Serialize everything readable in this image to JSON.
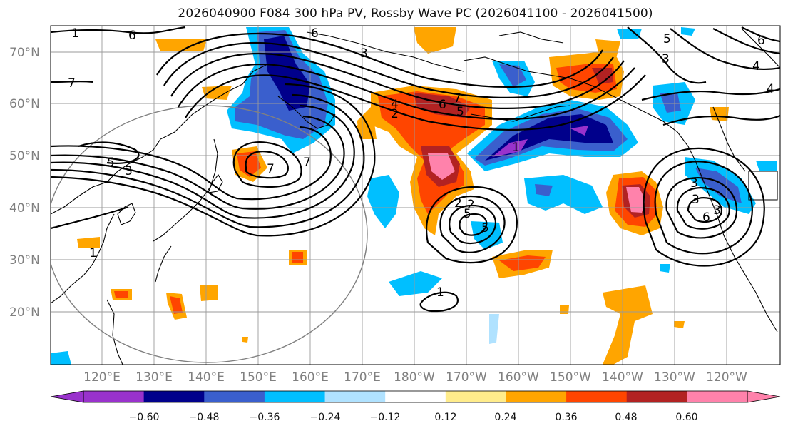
{
  "title": "2026040900 F084 300 hPa PV, Rossby Wave PC (2026041100 - 2026041500)",
  "map": {
    "lat_labels": [
      "70°N",
      "60°N",
      "50°N",
      "40°N",
      "30°N",
      "20°N"
    ],
    "lon_labels": [
      "120°E",
      "130°E",
      "140°E",
      "150°E",
      "160°E",
      "170°E",
      "180°W",
      "170°W",
      "160°W",
      "150°W",
      "140°W",
      "130°W",
      "120°W"
    ],
    "contour_labels": [
      "1",
      "7",
      "6",
      "5",
      "7",
      "6",
      "5",
      "4",
      "3",
      "5",
      "3",
      "7",
      "6",
      "4",
      "3",
      "2",
      "1",
      "2",
      "3",
      "6",
      "5",
      "4",
      "5",
      "3",
      "3",
      "7",
      "1",
      "2",
      "1",
      "6"
    ]
  },
  "colorbar": {
    "ticks": [
      "−0.60",
      "−0.48",
      "−0.36",
      "−0.24",
      "−0.12",
      "0.12",
      "0.24",
      "0.36",
      "0.48",
      "0.60"
    ],
    "colors": [
      "#9932CC",
      "#00008B",
      "#3A5FCD",
      "#00BFFF",
      "#B0E2FF",
      "#FFFFFF",
      "#FFEC8B",
      "#FFA500",
      "#FF4500",
      "#B22222",
      "#FF82AB"
    ]
  }
}
